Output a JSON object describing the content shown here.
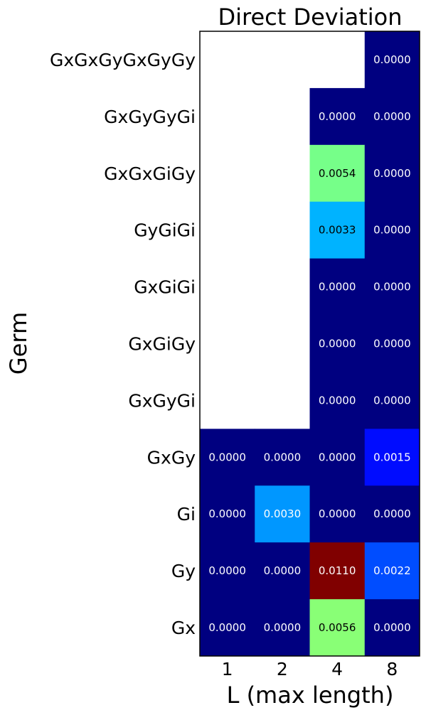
{
  "chart_data": {
    "type": "heatmap",
    "title": "Direct Deviation",
    "xlabel": "L (max length)",
    "ylabel": "Germ",
    "x_categories": [
      "1",
      "2",
      "4",
      "8"
    ],
    "y_categories": [
      "GxGxGyGxGyGy",
      "GxGyGyGi",
      "GxGxGiGy",
      "GyGiGi",
      "GxGiGi",
      "GxGiGy",
      "GxGyGi",
      "GxGy",
      "Gi",
      "Gy",
      "Gx"
    ],
    "values": [
      [
        null,
        null,
        null,
        0.0
      ],
      [
        null,
        null,
        0.0,
        0.0
      ],
      [
        null,
        null,
        0.0054,
        0.0
      ],
      [
        null,
        null,
        0.0033,
        0.0
      ],
      [
        null,
        null,
        0.0,
        0.0
      ],
      [
        null,
        null,
        0.0,
        0.0
      ],
      [
        null,
        null,
        0.0,
        0.0
      ],
      [
        0.0,
        0.0,
        0.0,
        0.0015
      ],
      [
        0.0,
        0.003,
        0.0,
        0.0
      ],
      [
        0.0,
        0.0,
        0.011,
        0.0022
      ],
      [
        0.0,
        0.0,
        0.0056,
        0.0
      ]
    ],
    "value_labels": [
      [
        null,
        null,
        null,
        "0.0000"
      ],
      [
        null,
        null,
        "0.0000",
        "0.0000"
      ],
      [
        null,
        null,
        "0.0054",
        "0.0000"
      ],
      [
        null,
        null,
        "0.0033",
        "0.0000"
      ],
      [
        null,
        null,
        "0.0000",
        "0.0000"
      ],
      [
        null,
        null,
        "0.0000",
        "0.0000"
      ],
      [
        null,
        null,
        "0.0000",
        "0.0000"
      ],
      [
        "0.0000",
        "0.0000",
        "0.0000",
        "0.0015"
      ],
      [
        "0.0000",
        "0.0030",
        "0.0000",
        "0.0000"
      ],
      [
        "0.0000",
        "0.0000",
        "0.0110",
        "0.0022"
      ],
      [
        "0.0000",
        "0.0000",
        "0.0056",
        "0.0000"
      ]
    ],
    "vmin": 0.0,
    "vmax": 0.011,
    "colormap": "jet",
    "missing_color": "#ffffff",
    "grid": false,
    "legend": "none"
  }
}
